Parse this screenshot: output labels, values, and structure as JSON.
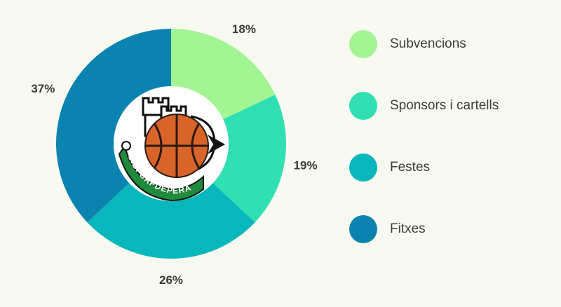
{
  "chart_data": {
    "type": "pie",
    "style": "donut",
    "categories": [
      "Subvencions",
      "Sponsors i cartells",
      "Festes",
      "Fitxes"
    ],
    "values": [
      18,
      19,
      26,
      37
    ],
    "labels": [
      "18%",
      "19%",
      "26%",
      "37%"
    ],
    "colors": [
      "#a3f593",
      "#30dfb2",
      "#07b7bb",
      "#0a83b0"
    ],
    "legend_position": "right"
  },
  "logo": {
    "text": "C.B. CAPDEPERA",
    "colors": {
      "green": "#1f8a3b",
      "ball": "#d9642a",
      "ink": "#111111"
    }
  }
}
